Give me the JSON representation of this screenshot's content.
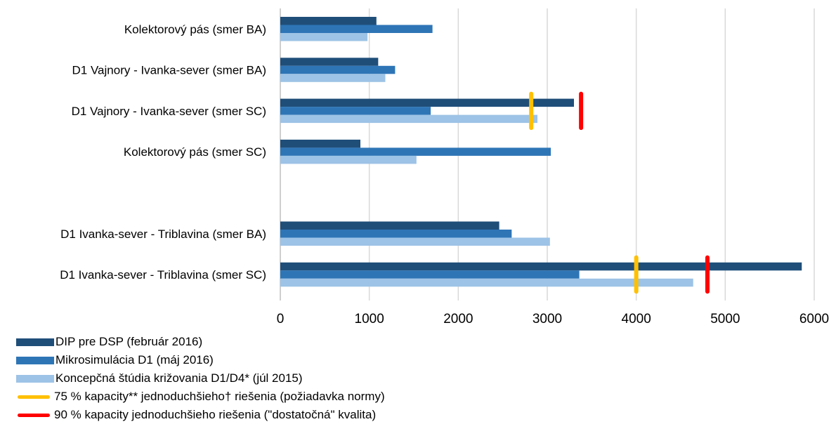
{
  "chart_data": {
    "type": "bar",
    "orientation": "horizontal",
    "categories": [
      "Kolektorový pás (smer BA)",
      "D1 Vajnory - Ivanka-sever (smer BA)",
      "D1 Vajnory - Ivanka-sever (smer SC)",
      "Kolektorový pás (smer SC)",
      "",
      "D1 Ivanka-sever - Triblavina (smer BA)",
      "D1 Ivanka-sever - Triblavina (smer SC)"
    ],
    "series": [
      {
        "name": "DIP pre DSP (február 2016)",
        "color": "#1f4e79",
        "values": [
          1080,
          1100,
          3300,
          900,
          null,
          2460,
          5860
        ]
      },
      {
        "name": "Mikrosimulácia D1 (máj 2016)",
        "color": "#2e75b6",
        "values": [
          1710,
          1290,
          1690,
          3040,
          null,
          2600,
          3360
        ]
      },
      {
        "name": "Koncepčná štúdia križovania D1/D4* (júl 2015)",
        "color": "#9dc3e6",
        "values": [
          980,
          1180,
          2890,
          1530,
          null,
          3030,
          4640
        ]
      }
    ],
    "reference_markers": [
      {
        "name": "75 % kapacity** jednoduchšieho† riešenia (požiadavka normy)",
        "color": "#ffc000",
        "points": [
          {
            "category_index": 2,
            "value": 2820
          },
          {
            "category_index": 6,
            "value": 4000
          }
        ]
      },
      {
        "name": "90 % kapacity jednoduchšieho riešenia (\"dostatočná\" kvalita)",
        "color": "#ff0000",
        "points": [
          {
            "category_index": 2,
            "value": 3380
          },
          {
            "category_index": 6,
            "value": 4800
          }
        ]
      }
    ],
    "xlim": [
      0,
      6000
    ],
    "xticks": [
      "0",
      "1000",
      "2000",
      "3000",
      "4000",
      "5000",
      "6000"
    ],
    "grid": true,
    "legend_position": "bottom-left",
    "title": "",
    "xlabel": "",
    "ylabel": ""
  }
}
